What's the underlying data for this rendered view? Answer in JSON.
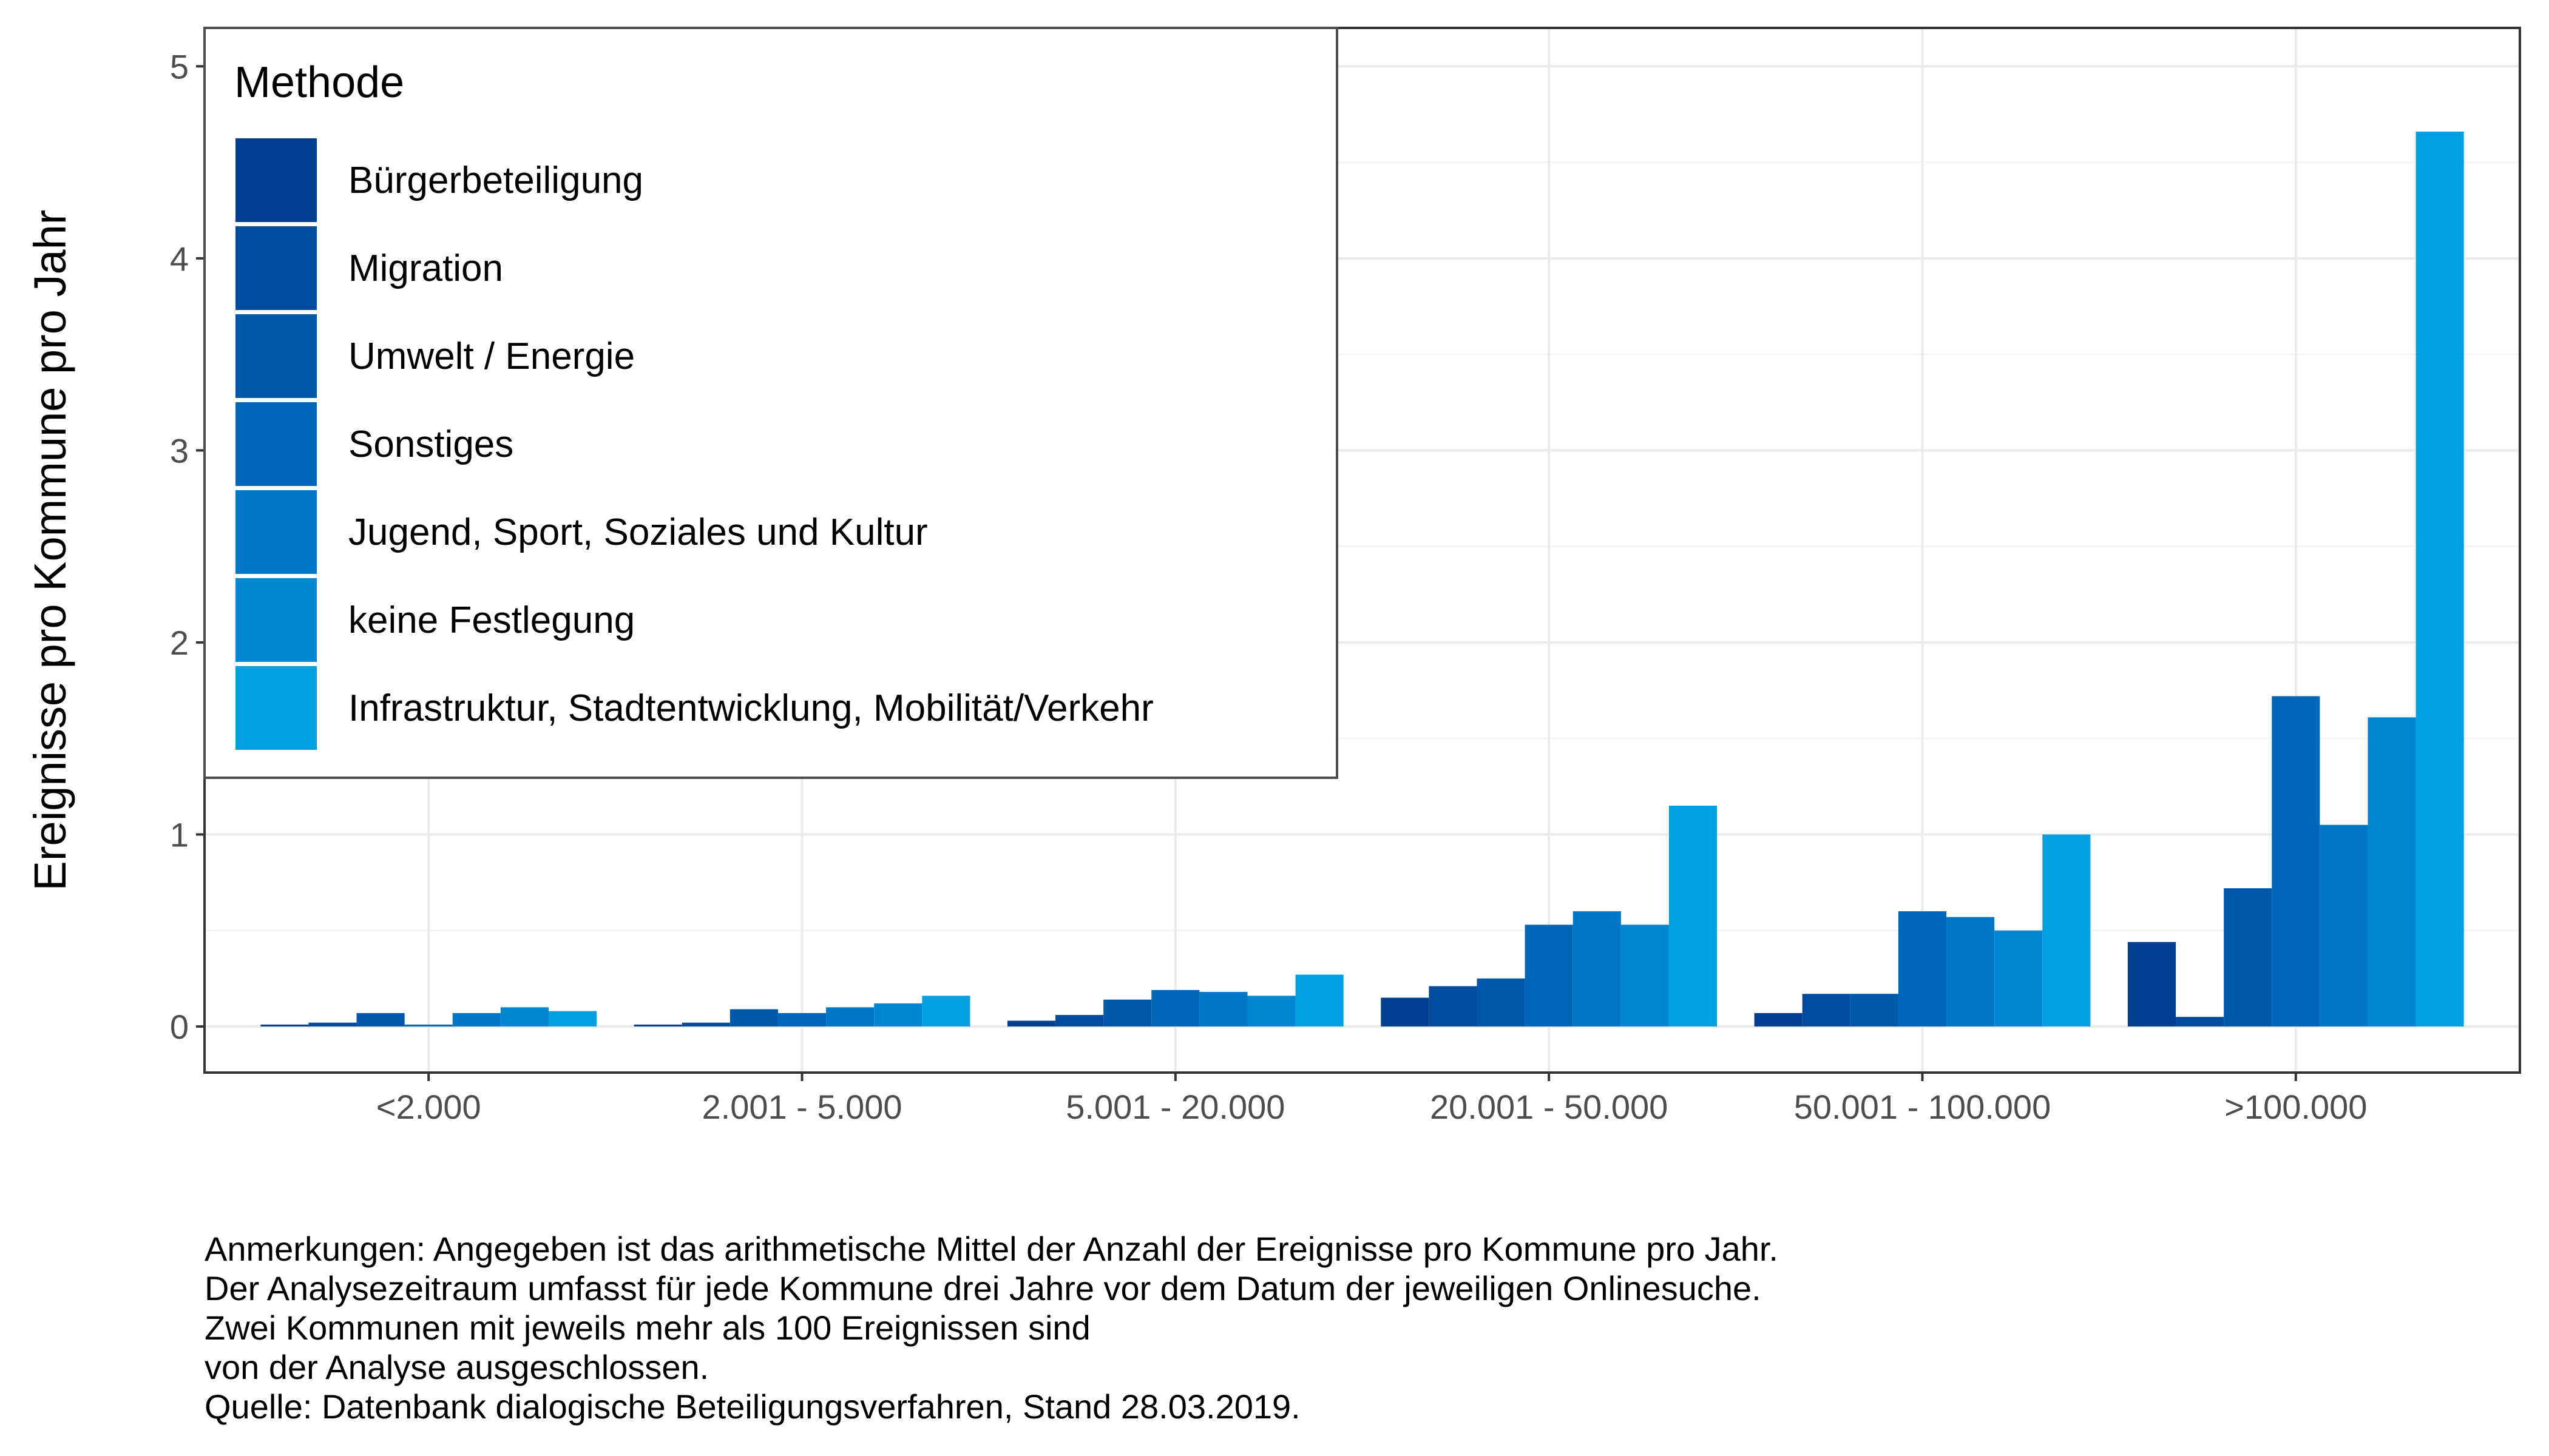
{
  "chart_data": {
    "type": "bar",
    "title": "",
    "xlabel": "",
    "ylabel": "Ereignisse pro Kommune pro Jahr",
    "ylim": [
      -0.24,
      5.2
    ],
    "yticks": [
      0,
      1,
      2,
      3,
      4,
      5
    ],
    "grid": true,
    "legend_title": "Methode",
    "legend_position": "top-left",
    "categories": [
      "<2.000",
      "2.001 - 5.000",
      "5.001 - 20.000",
      "20.001 - 50.000",
      "50.001 - 100.000",
      ">100.000"
    ],
    "series": [
      {
        "name": "Bürgerbeteiligung",
        "color": "#003f8f",
        "values": [
          0.01,
          0.01,
          0.03,
          0.15,
          0.07,
          0.44
        ]
      },
      {
        "name": "Migration",
        "color": "#004b9e",
        "values": [
          0.02,
          0.02,
          0.06,
          0.21,
          0.17,
          0.05
        ]
      },
      {
        "name": "Umwelt / Energie",
        "color": "#0058ac",
        "values": [
          0.07,
          0.09,
          0.14,
          0.25,
          0.17,
          0.72
        ]
      },
      {
        "name": "Sonstiges",
        "color": "#0066b8",
        "values": [
          0.01,
          0.07,
          0.19,
          0.53,
          0.6,
          1.72
        ]
      },
      {
        "name": "Jugend, Sport, Soziales und Kultur",
        "color": "#0076c6",
        "values": [
          0.07,
          0.1,
          0.18,
          0.6,
          0.57,
          1.05
        ]
      },
      {
        "name": "keine Festlegung",
        "color": "#0086d3",
        "values": [
          0.1,
          0.12,
          0.16,
          0.53,
          0.5,
          1.61
        ]
      },
      {
        "name": "Infrastruktur, Stadtentwicklung, Mobilität/Verkehr",
        "color": "#00a0e0",
        "values": [
          0.08,
          0.16,
          0.27,
          1.15,
          1.0,
          4.66
        ]
      }
    ]
  },
  "notes": [
    "Anmerkungen: Angegeben ist das arithmetische Mittel der Anzahl der Ereignisse pro Kommune pro Jahr.",
    "Der Analysezeitraum umfasst für jede Kommune drei Jahre vor dem Datum der jeweiligen Onlinesuche.",
    "Zwei Kommunen mit jeweils mehr als 100 Ereignissen sind",
    "von der Analyse ausgeschlossen.",
    "Quelle: Datenbank dialogische Beteiligungsverfahren, Stand 28.03.2019."
  ]
}
